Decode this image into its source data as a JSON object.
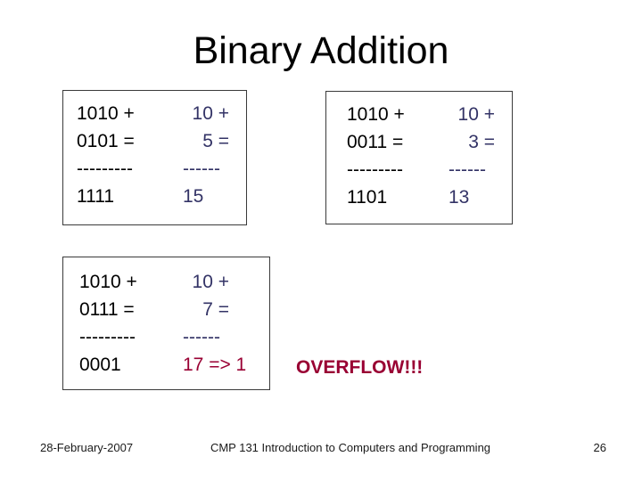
{
  "slide": {
    "title": "Binary Addition",
    "overflow_label": "OVERFLOW!!!",
    "boxes": [
      {
        "binary": [
          "1010 +",
          "0101 =",
          "---------",
          "1111"
        ],
        "decimal": [
          "10 +",
          "5 =",
          "------",
          "15"
        ]
      },
      {
        "binary": [
          "1010 +",
          "0011 =",
          "---------",
          "1101"
        ],
        "decimal": [
          "10 +",
          "3 =",
          "------",
          "13"
        ]
      },
      {
        "binary": [
          "1010 +",
          "0111 =",
          "---------",
          "0001"
        ],
        "decimal": [
          "10 +",
          "7 =",
          "------",
          "17 => 1"
        ]
      }
    ],
    "footer": {
      "date": "28-February-2007",
      "course": "CMP 131 Introduction to Computers and Programming",
      "page_number": "26"
    },
    "colors": {
      "background": "#ffffff",
      "title_text": "#000000",
      "binary_text": "#000000",
      "decimal_text": "#333366",
      "overflow_text": "#990033",
      "box_border": "#3a3a3a",
      "footer_text": "#1a1a1a"
    }
  }
}
